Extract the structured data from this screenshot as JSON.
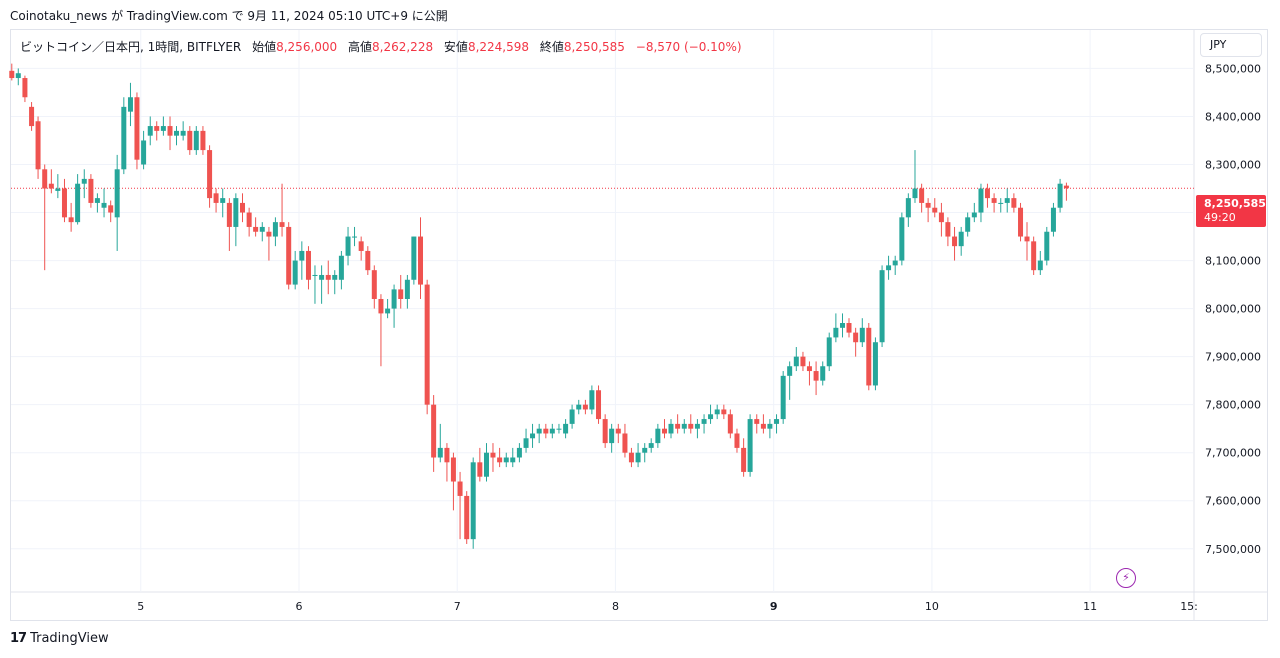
{
  "header": {
    "caption": "Coinotaku_news が TradingView.com で 9月 11, 2024 05:10 UTC+9 に公開"
  },
  "legend": {
    "symbol": "ビットコイン／日本円, 1時間, BITFLYER",
    "open_label": "始値",
    "open_value": "8,256,000",
    "high_label": "高値",
    "high_value": "8,262,228",
    "low_label": "安値",
    "low_value": "8,224,598",
    "close_label": "終値",
    "close_value": "8,250,585",
    "change": "−8,570 (−0.10%)"
  },
  "currency_button": "JPY",
  "last_price": {
    "value": "8,250,585",
    "countdown": "49:20"
  },
  "footer": {
    "brand": "TradingView",
    "brand_mark": "17"
  },
  "colors": {
    "up": "#26a69a",
    "down": "#ef5350",
    "grid": "#f0f3fa",
    "last_price_line": "#f23645",
    "flash": "#9c27b0"
  },
  "chart_data": {
    "type": "candlestick",
    "symbol": "BTC/JPY",
    "interval": "1h",
    "exchange": "BITFLYER",
    "ylim": [
      7410000,
      8580000
    ],
    "y_ticks": [
      "8,500,000",
      "8,400,000",
      "8,300,000",
      "8,200,000",
      "8,100,000",
      "8,000,000",
      "7,900,000",
      "7,800,000",
      "7,700,000",
      "7,600,000",
      "7,500,000"
    ],
    "y_tick_values": [
      8500000,
      8400000,
      8300000,
      8200000,
      8100000,
      8000000,
      7900000,
      7800000,
      7700000,
      7600000,
      7500000
    ],
    "x_ticks": [
      {
        "label": "5",
        "day": 5
      },
      {
        "label": "6",
        "day": 6
      },
      {
        "label": "7",
        "day": 7
      },
      {
        "label": "8",
        "day": 8
      },
      {
        "label": "9",
        "day": 9,
        "bold": true
      },
      {
        "label": "10",
        "day": 10
      },
      {
        "label": "11",
        "day": 11
      },
      {
        "label": "15:",
        "day": 11.625
      }
    ],
    "x_range_days": [
      4.18,
      11.65
    ],
    "last_price": 8250585,
    "candles": [
      [
        4.185,
        8495000,
        8510000,
        8475000,
        8480000
      ],
      [
        4.226,
        8480000,
        8500000,
        8465000,
        8490000
      ],
      [
        4.268,
        8480000,
        8485000,
        8430000,
        8440000
      ],
      [
        4.31,
        8420000,
        8430000,
        8370000,
        8380000
      ],
      [
        4.351,
        8390000,
        8400000,
        8270000,
        8290000
      ],
      [
        4.393,
        8290000,
        8300000,
        8080000,
        8250000
      ],
      [
        4.435,
        8260000,
        8290000,
        8240000,
        8250000
      ],
      [
        4.476,
        8245000,
        8280000,
        8230000,
        8250000
      ],
      [
        4.518,
        8250000,
        8270000,
        8180000,
        8190000
      ],
      [
        4.56,
        8190000,
        8220000,
        8160000,
        8180000
      ],
      [
        4.601,
        8180000,
        8280000,
        8175000,
        8260000
      ],
      [
        4.643,
        8260000,
        8290000,
        8230000,
        8270000
      ],
      [
        4.685,
        8270000,
        8280000,
        8210000,
        8220000
      ],
      [
        4.726,
        8220000,
        8240000,
        8200000,
        8230000
      ],
      [
        4.768,
        8210000,
        8250000,
        8190000,
        8220000
      ],
      [
        4.81,
        8215000,
        8225000,
        8180000,
        8200000
      ],
      [
        4.851,
        8190000,
        8320000,
        8120000,
        8290000
      ],
      [
        4.893,
        8290000,
        8440000,
        8280000,
        8420000
      ],
      [
        4.935,
        8410000,
        8470000,
        8380000,
        8440000
      ],
      [
        4.976,
        8440000,
        8450000,
        8290000,
        8310000
      ],
      [
        5.018,
        8300000,
        8370000,
        8290000,
        8350000
      ],
      [
        5.06,
        8360000,
        8400000,
        8340000,
        8380000
      ],
      [
        5.101,
        8380000,
        8390000,
        8350000,
        8370000
      ],
      [
        5.143,
        8370000,
        8400000,
        8360000,
        8380000
      ],
      [
        5.185,
        8380000,
        8400000,
        8330000,
        8360000
      ],
      [
        5.226,
        8360000,
        8380000,
        8340000,
        8370000
      ],
      [
        5.268,
        8360000,
        8390000,
        8350000,
        8370000
      ],
      [
        5.31,
        8370000,
        8380000,
        8320000,
        8330000
      ],
      [
        5.351,
        8330000,
        8380000,
        8320000,
        8370000
      ],
      [
        5.393,
        8370000,
        8380000,
        8320000,
        8330000
      ],
      [
        5.435,
        8330000,
        8340000,
        8210000,
        8230000
      ],
      [
        5.476,
        8240000,
        8250000,
        8200000,
        8220000
      ],
      [
        5.518,
        8220000,
        8250000,
        8190000,
        8230000
      ],
      [
        5.56,
        8220000,
        8230000,
        8120000,
        8170000
      ],
      [
        5.601,
        8170000,
        8240000,
        8130000,
        8230000
      ],
      [
        5.643,
        8220000,
        8240000,
        8180000,
        8200000
      ],
      [
        5.685,
        8200000,
        8210000,
        8150000,
        8170000
      ],
      [
        5.726,
        8170000,
        8190000,
        8150000,
        8160000
      ],
      [
        5.768,
        8160000,
        8180000,
        8140000,
        8170000
      ],
      [
        5.81,
        8160000,
        8170000,
        8100000,
        8150000
      ],
      [
        5.851,
        8150000,
        8190000,
        8130000,
        8180000
      ],
      [
        5.893,
        8180000,
        8260000,
        8150000,
        8170000
      ],
      [
        5.935,
        8170000,
        8180000,
        8040000,
        8050000
      ],
      [
        5.976,
        8050000,
        8120000,
        8040000,
        8100000
      ],
      [
        6.018,
        8100000,
        8140000,
        8060000,
        8120000
      ],
      [
        6.06,
        8120000,
        8130000,
        8040000,
        8060000
      ],
      [
        6.101,
        8070000,
        8090000,
        8010000,
        8070000
      ],
      [
        6.143,
        8060000,
        8090000,
        8010000,
        8070000
      ],
      [
        6.185,
        8070000,
        8100000,
        8030000,
        8060000
      ],
      [
        6.226,
        8060000,
        8080000,
        8030000,
        8070000
      ],
      [
        6.268,
        8060000,
        8120000,
        8040000,
        8110000
      ],
      [
        6.31,
        8110000,
        8170000,
        8090000,
        8150000
      ],
      [
        6.351,
        8150000,
        8170000,
        8130000,
        8150000
      ],
      [
        6.393,
        8140000,
        8150000,
        8100000,
        8120000
      ],
      [
        6.435,
        8120000,
        8130000,
        8070000,
        8080000
      ],
      [
        6.476,
        8080000,
        8090000,
        8000000,
        8020000
      ],
      [
        6.518,
        8020000,
        8030000,
        7880000,
        7990000
      ],
      [
        6.56,
        7990000,
        8020000,
        7980000,
        8000000
      ],
      [
        6.601,
        8000000,
        8050000,
        7960000,
        8040000
      ],
      [
        6.643,
        8040000,
        8070000,
        8000000,
        8020000
      ],
      [
        6.685,
        8020000,
        8070000,
        8000000,
        8060000
      ],
      [
        6.726,
        8060000,
        8150000,
        8050000,
        8150000
      ],
      [
        6.768,
        8150000,
        8190000,
        8020000,
        8050000
      ],
      [
        6.81,
        8050000,
        8060000,
        7780000,
        7800000
      ],
      [
        6.851,
        7800000,
        7820000,
        7660000,
        7690000
      ],
      [
        6.893,
        7690000,
        7760000,
        7680000,
        7710000
      ],
      [
        6.935,
        7710000,
        7720000,
        7640000,
        7680000
      ],
      [
        6.976,
        7690000,
        7700000,
        7580000,
        7640000
      ],
      [
        7.018,
        7640000,
        7660000,
        7520000,
        7610000
      ],
      [
        7.06,
        7610000,
        7620000,
        7510000,
        7520000
      ],
      [
        7.101,
        7520000,
        7690000,
        7500000,
        7680000
      ],
      [
        7.143,
        7680000,
        7710000,
        7640000,
        7650000
      ],
      [
        7.185,
        7650000,
        7720000,
        7640000,
        7700000
      ],
      [
        7.226,
        7700000,
        7720000,
        7660000,
        7690000
      ],
      [
        7.268,
        7690000,
        7710000,
        7670000,
        7680000
      ],
      [
        7.31,
        7680000,
        7700000,
        7670000,
        7690000
      ],
      [
        7.351,
        7680000,
        7710000,
        7670000,
        7690000
      ],
      [
        7.393,
        7690000,
        7720000,
        7680000,
        7710000
      ],
      [
        7.435,
        7710000,
        7750000,
        7700000,
        7730000
      ],
      [
        7.476,
        7730000,
        7760000,
        7710000,
        7740000
      ],
      [
        7.518,
        7740000,
        7760000,
        7720000,
        7750000
      ],
      [
        7.56,
        7750000,
        7760000,
        7730000,
        7740000
      ],
      [
        7.601,
        7740000,
        7760000,
        7730000,
        7750000
      ],
      [
        7.643,
        7750000,
        7760000,
        7740000,
        7750000
      ],
      [
        7.685,
        7740000,
        7770000,
        7730000,
        7760000
      ],
      [
        7.726,
        7760000,
        7800000,
        7750000,
        7790000
      ],
      [
        7.768,
        7790000,
        7810000,
        7780000,
        7800000
      ],
      [
        7.81,
        7800000,
        7810000,
        7780000,
        7790000
      ],
      [
        7.851,
        7790000,
        7840000,
        7780000,
        7830000
      ],
      [
        7.893,
        7830000,
        7840000,
        7760000,
        7770000
      ],
      [
        7.935,
        7770000,
        7780000,
        7710000,
        7720000
      ],
      [
        7.976,
        7720000,
        7760000,
        7700000,
        7750000
      ],
      [
        8.018,
        7750000,
        7760000,
        7720000,
        7740000
      ],
      [
        8.06,
        7740000,
        7760000,
        7690000,
        7700000
      ],
      [
        8.101,
        7700000,
        7710000,
        7670000,
        7680000
      ],
      [
        8.143,
        7680000,
        7720000,
        7670000,
        7700000
      ],
      [
        8.185,
        7700000,
        7720000,
        7680000,
        7710000
      ],
      [
        8.226,
        7710000,
        7730000,
        7700000,
        7720000
      ],
      [
        8.268,
        7720000,
        7760000,
        7710000,
        7750000
      ],
      [
        8.31,
        7750000,
        7770000,
        7730000,
        7740000
      ],
      [
        8.351,
        7740000,
        7770000,
        7730000,
        7760000
      ],
      [
        8.393,
        7760000,
        7780000,
        7740000,
        7750000
      ],
      [
        8.435,
        7750000,
        7770000,
        7740000,
        7760000
      ],
      [
        8.476,
        7760000,
        7780000,
        7740000,
        7750000
      ],
      [
        8.518,
        7750000,
        7770000,
        7730000,
        7760000
      ],
      [
        8.56,
        7760000,
        7780000,
        7740000,
        7770000
      ],
      [
        8.601,
        7770000,
        7800000,
        7760000,
        7780000
      ],
      [
        8.643,
        7780000,
        7800000,
        7770000,
        7790000
      ],
      [
        8.685,
        7790000,
        7800000,
        7770000,
        7780000
      ],
      [
        8.726,
        7780000,
        7790000,
        7730000,
        7740000
      ],
      [
        8.768,
        7740000,
        7750000,
        7700000,
        7710000
      ],
      [
        8.81,
        7710000,
        7730000,
        7650000,
        7660000
      ],
      [
        8.851,
        7660000,
        7780000,
        7650000,
        7770000
      ],
      [
        8.893,
        7770000,
        7780000,
        7740000,
        7760000
      ],
      [
        8.935,
        7760000,
        7780000,
        7740000,
        7750000
      ],
      [
        8.976,
        7750000,
        7770000,
        7730000,
        7760000
      ],
      [
        9.018,
        7760000,
        7780000,
        7740000,
        7770000
      ],
      [
        9.06,
        7770000,
        7870000,
        7760000,
        7860000
      ],
      [
        9.101,
        7860000,
        7890000,
        7810000,
        7880000
      ],
      [
        9.143,
        7880000,
        7920000,
        7870000,
        7900000
      ],
      [
        9.185,
        7900000,
        7910000,
        7870000,
        7880000
      ],
      [
        9.226,
        7880000,
        7890000,
        7840000,
        7870000
      ],
      [
        9.268,
        7870000,
        7890000,
        7820000,
        7850000
      ],
      [
        9.31,
        7850000,
        7890000,
        7840000,
        7880000
      ],
      [
        9.351,
        7880000,
        7950000,
        7870000,
        7940000
      ],
      [
        9.393,
        7940000,
        7990000,
        7930000,
        7960000
      ],
      [
        9.435,
        7960000,
        7990000,
        7940000,
        7970000
      ],
      [
        9.476,
        7970000,
        7980000,
        7940000,
        7950000
      ],
      [
        9.518,
        7950000,
        7960000,
        7900000,
        7930000
      ],
      [
        9.56,
        7930000,
        7980000,
        7920000,
        7960000
      ],
      [
        9.601,
        7960000,
        7970000,
        7830000,
        7840000
      ],
      [
        9.643,
        7840000,
        7940000,
        7830000,
        7930000
      ],
      [
        9.685,
        7930000,
        8090000,
        7920000,
        8080000
      ],
      [
        9.726,
        8080000,
        8110000,
        8060000,
        8090000
      ],
      [
        9.768,
        8090000,
        8110000,
        8070000,
        8100000
      ],
      [
        9.81,
        8100000,
        8200000,
        8090000,
        8190000
      ],
      [
        9.851,
        8190000,
        8240000,
        8170000,
        8230000
      ],
      [
        9.893,
        8230000,
        8330000,
        8220000,
        8250000
      ],
      [
        9.935,
        8250000,
        8260000,
        8200000,
        8220000
      ],
      [
        9.976,
        8220000,
        8230000,
        8180000,
        8210000
      ],
      [
        10.018,
        8210000,
        8230000,
        8190000,
        8200000
      ],
      [
        10.06,
        8200000,
        8220000,
        8150000,
        8180000
      ],
      [
        10.101,
        8180000,
        8190000,
        8130000,
        8150000
      ],
      [
        10.143,
        8150000,
        8170000,
        8100000,
        8130000
      ],
      [
        10.185,
        8130000,
        8170000,
        8110000,
        8160000
      ],
      [
        10.226,
        8160000,
        8200000,
        8150000,
        8190000
      ],
      [
        10.268,
        8190000,
        8220000,
        8180000,
        8200000
      ],
      [
        10.31,
        8200000,
        8260000,
        8180000,
        8250000
      ],
      [
        10.351,
        8250000,
        8260000,
        8210000,
        8230000
      ],
      [
        10.393,
        8230000,
        8240000,
        8200000,
        8220000
      ],
      [
        10.435,
        8220000,
        8230000,
        8200000,
        8220000
      ],
      [
        10.476,
        8220000,
        8250000,
        8200000,
        8230000
      ],
      [
        10.518,
        8230000,
        8240000,
        8200000,
        8210000
      ],
      [
        10.56,
        8210000,
        8220000,
        8140000,
        8150000
      ],
      [
        10.601,
        8150000,
        8180000,
        8100000,
        8140000
      ],
      [
        10.643,
        8140000,
        8150000,
        8070000,
        8080000
      ],
      [
        10.685,
        8080000,
        8120000,
        8070000,
        8100000
      ],
      [
        10.726,
        8100000,
        8170000,
        8090000,
        8160000
      ],
      [
        10.768,
        8160000,
        8220000,
        8150000,
        8210000
      ],
      [
        10.81,
        8210000,
        8270000,
        8200000,
        8260000
      ],
      [
        10.85,
        8256000,
        8262228,
        8224598,
        8250585
      ]
    ]
  }
}
